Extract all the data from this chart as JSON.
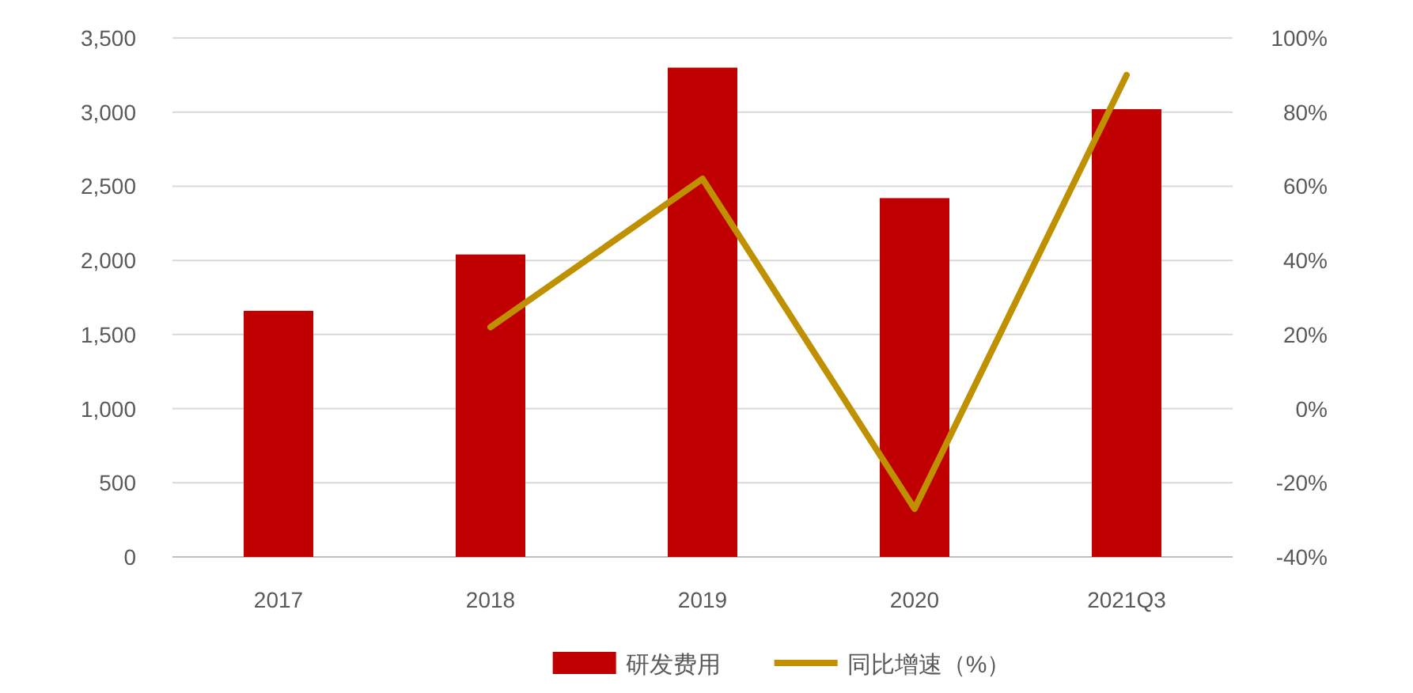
{
  "chart_data": {
    "type": "bar",
    "categories": [
      "2017",
      "2018",
      "2019",
      "2020",
      "2021Q3"
    ],
    "series": [
      {
        "name": "研发费用",
        "color": "#c00000",
        "values": [
          1660,
          2040,
          3300,
          2420,
          3020
        ]
      },
      {
        "name": "同比增速（%）",
        "type": "line",
        "axis": "y2",
        "color": "#bf9000",
        "values": [
          null,
          22,
          62,
          -27,
          90
        ]
      }
    ],
    "ylim": [
      0,
      3500
    ],
    "yticks": [
      {
        "value": 0,
        "label": "0"
      },
      {
        "value": 500,
        "label": "500"
      },
      {
        "value": 1000,
        "label": "1,000"
      },
      {
        "value": 1500,
        "label": "1,500"
      },
      {
        "value": 2000,
        "label": "2,000"
      },
      {
        "value": 2500,
        "label": "2,500"
      },
      {
        "value": 3000,
        "label": "3,000"
      },
      {
        "value": 3500,
        "label": "3,500"
      }
    ],
    "y2lim": [
      -40,
      100
    ],
    "y2ticks": [
      {
        "value": -40,
        "label": "-40%"
      },
      {
        "value": -20,
        "label": "-20%"
      },
      {
        "value": 0,
        "label": "0%"
      },
      {
        "value": 20,
        "label": "20%"
      },
      {
        "value": 40,
        "label": "40%"
      },
      {
        "value": 60,
        "label": "60%"
      },
      {
        "value": 80,
        "label": "80%"
      },
      {
        "value": 100,
        "label": "100%"
      }
    ],
    "grid": "y",
    "legend": "bottom",
    "line_style": "solid",
    "marker": "none"
  }
}
